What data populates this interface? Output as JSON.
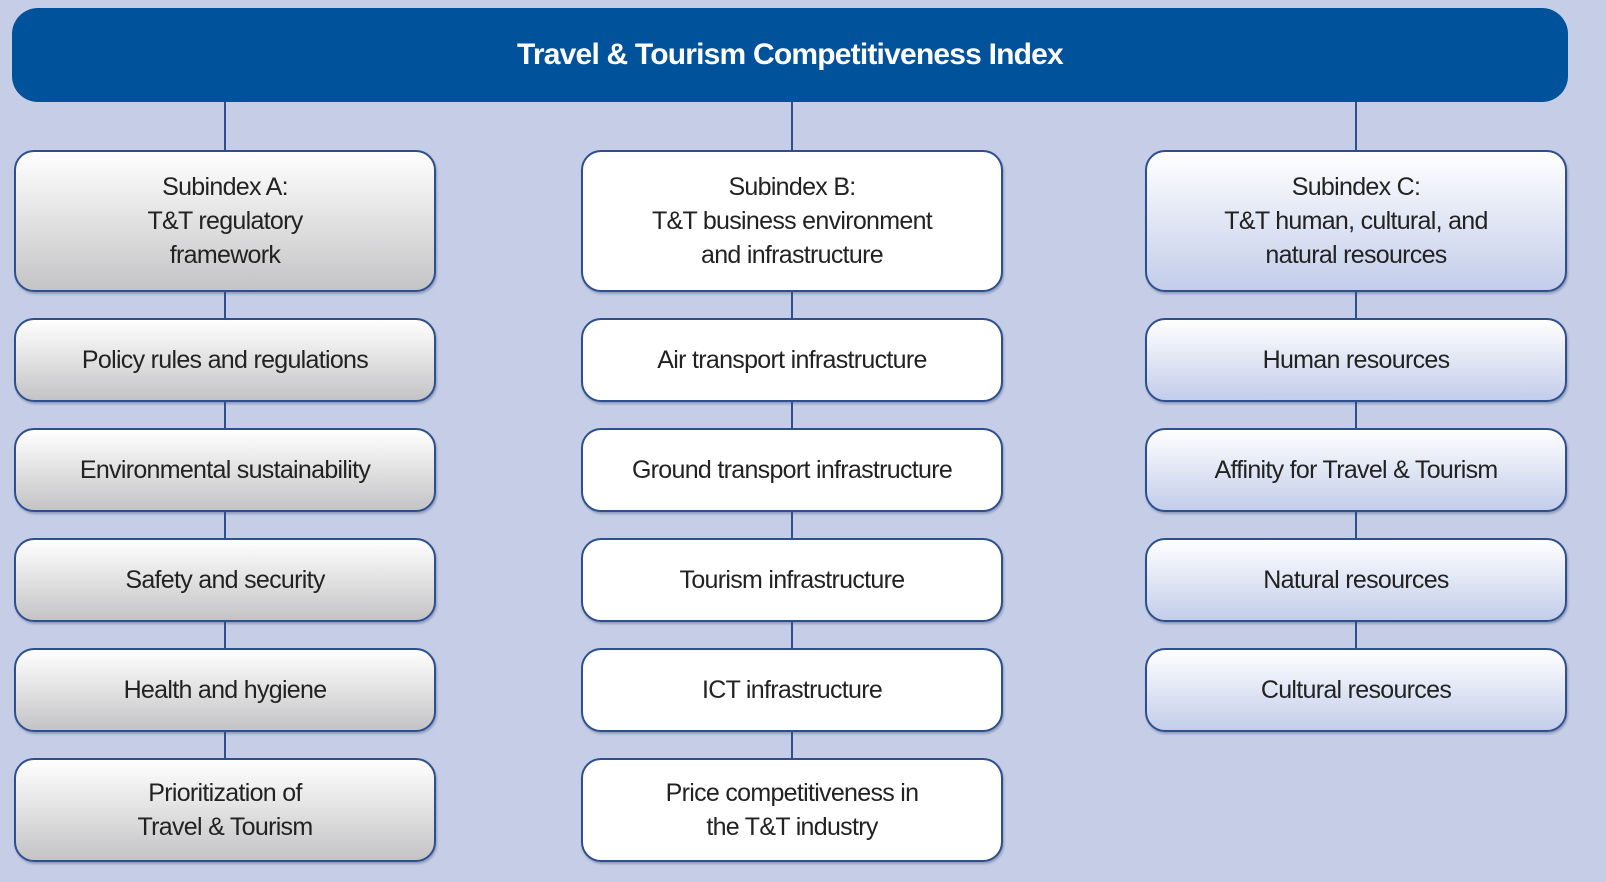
{
  "title": "Travel & Tourism Competitiveness Index",
  "subindexes": [
    {
      "header": [
        "Subindex A:",
        "T&T regulatory",
        "framework"
      ],
      "pillars": [
        [
          "Policy rules and regulations"
        ],
        [
          "Environmental sustainability"
        ],
        [
          "Safety and security"
        ],
        [
          "Health and hygiene"
        ],
        [
          "Prioritization of",
          "Travel & Tourism"
        ]
      ]
    },
    {
      "header": [
        "Subindex B:",
        "T&T business environment",
        "and infrastructure"
      ],
      "pillars": [
        [
          "Air transport infrastructure"
        ],
        [
          "Ground transport infrastructure"
        ],
        [
          "Tourism infrastructure"
        ],
        [
          "ICT infrastructure"
        ],
        [
          "Price competitiveness in",
          "the T&T industry"
        ]
      ]
    },
    {
      "header": [
        "Subindex C:",
        "T&T human, cultural, and",
        "natural resources"
      ],
      "pillars": [
        [
          "Human resources"
        ],
        [
          "Affinity for Travel & Tourism"
        ],
        [
          "Natural resources"
        ],
        [
          "Cultural resources"
        ]
      ]
    }
  ]
}
